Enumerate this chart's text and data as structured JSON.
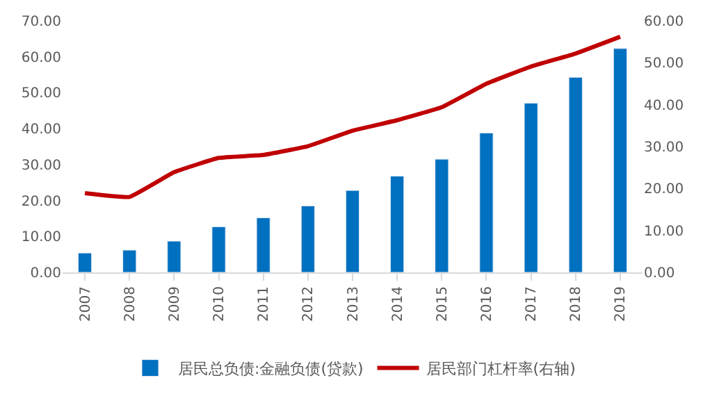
{
  "chart_data": {
    "type": "bar",
    "categories": [
      "2007",
      "2008",
      "2009",
      "2010",
      "2011",
      "2012",
      "2013",
      "2014",
      "2015",
      "2016",
      "2017",
      "2018",
      "2019"
    ],
    "series": [
      {
        "name": "居民总负债:金融负债(贷款)",
        "color": "#0070c0",
        "values": [
          5.4,
          6.2,
          8.7,
          12.7,
          15.2,
          18.5,
          22.8,
          26.8,
          31.5,
          38.8,
          47.1,
          54.3,
          62.3
        ]
      },
      {
        "name": "居民部门杠杆率(右轴)",
        "color": "#c00000",
        "type": "line",
        "axis": "y2",
        "values": [
          18.9,
          18.0,
          23.9,
          27.3,
          28.0,
          30.1,
          33.8,
          36.3,
          39.4,
          45.0,
          49.1,
          52.2,
          56.2
        ]
      }
    ],
    "ylim": [
      0,
      70
    ],
    "yticks": [
      {
        "value": 0,
        "label": "0.00"
      },
      {
        "value": 10,
        "label": "10.00"
      },
      {
        "value": 20,
        "label": "20.00"
      },
      {
        "value": 30,
        "label": "30.00"
      },
      {
        "value": 40,
        "label": "40.00"
      },
      {
        "value": 50,
        "label": "50.00"
      },
      {
        "value": 60,
        "label": "60.00"
      },
      {
        "value": 70,
        "label": "70.00"
      }
    ],
    "y2lim": [
      0,
      60
    ],
    "y2ticks": [
      {
        "value": 0,
        "label": "0.00"
      },
      {
        "value": 10,
        "label": "10.00"
      },
      {
        "value": 20,
        "label": "20.00"
      },
      {
        "value": 30,
        "label": "30.00"
      },
      {
        "value": 40,
        "label": "40.00"
      },
      {
        "value": 50,
        "label": "50.00"
      },
      {
        "value": 60,
        "label": "60.00"
      }
    ],
    "legend": "bottom",
    "marker": "none",
    "line_style": "solid"
  }
}
